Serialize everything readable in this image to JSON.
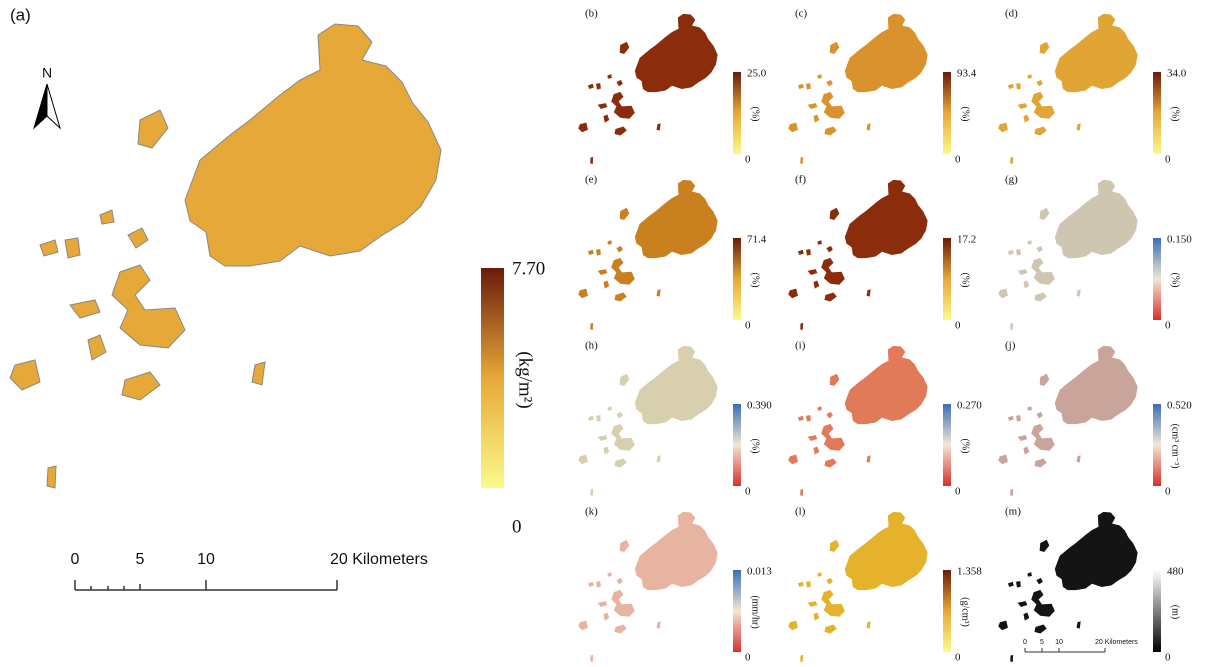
{
  "main": {
    "label": "(a)",
    "north": "N",
    "map_color": "#e6a838",
    "legend": {
      "max": "7.70",
      "min": "0",
      "unit": "(kg/m²)",
      "colors": [
        "#fafa8c",
        "#e8a838",
        "#6b1a0a"
      ]
    },
    "scale_bar": [
      "0",
      "5",
      "10",
      "20 Kilometers"
    ]
  },
  "panels": [
    {
      "label": "(b)",
      "max": "25.0",
      "min": "0",
      "unit": "(%)",
      "colors": [
        "#fafa8c",
        "#e8a838",
        "#6b1a0a"
      ],
      "map_color": "#8b2c0c"
    },
    {
      "label": "(c)",
      "max": "93.4",
      "min": "0",
      "unit": "(%)",
      "colors": [
        "#fafa8c",
        "#e8a838",
        "#6b1a0a"
      ],
      "map_color": "#d9922e"
    },
    {
      "label": "(d)",
      "max": "34.0",
      "min": "0",
      "unit": "(%)",
      "colors": [
        "#fafa8c",
        "#e8a838",
        "#6b1a0a"
      ],
      "map_color": "#e0a534"
    },
    {
      "label": "(e)",
      "max": "71.4",
      "min": "0",
      "unit": "(%)",
      "colors": [
        "#fafa8c",
        "#e8a838",
        "#6b1a0a"
      ],
      "map_color": "#c9801f"
    },
    {
      "label": "(f)",
      "max": "17.2",
      "min": "0",
      "unit": "(%)",
      "colors": [
        "#fafa8c",
        "#e8a838",
        "#6b1a0a"
      ],
      "map_color": "#8b2c0c"
    },
    {
      "label": "(g)",
      "max": "0.150",
      "min": "0",
      "unit": "(%)",
      "colors": [
        "#d7302a",
        "#f2e6d4",
        "#3a6fb5"
      ],
      "map_color": "#cfc6b2"
    },
    {
      "label": "(h)",
      "max": "0.390",
      "min": "0",
      "unit": "(%)",
      "colors": [
        "#d7302a",
        "#f2e6d4",
        "#3a6fb5"
      ],
      "map_color": "#d8cfae"
    },
    {
      "label": "(i)",
      "max": "0.270",
      "min": "0",
      "unit": "(%)",
      "colors": [
        "#d7302a",
        "#f2e6d4",
        "#3a6fb5"
      ],
      "map_color": "#e07a58"
    },
    {
      "label": "(j)",
      "max": "0.520",
      "min": "0",
      "unit": "(cm³ cm⁻³)",
      "colors": [
        "#d7302a",
        "#f2e6d4",
        "#3a6fb5"
      ],
      "map_color": "#c9a49a"
    },
    {
      "label": "(k)",
      "max": "0.013",
      "min": "0",
      "unit": "(mm/hr)",
      "colors": [
        "#d7302a",
        "#f2e6d4",
        "#3a6fb5"
      ],
      "map_color": "#e8b4a2"
    },
    {
      "label": "(l)",
      "max": "1.358",
      "min": "0",
      "unit": "(g/cm³)",
      "colors": [
        "#fafa8c",
        "#e8a838",
        "#6b1a0a"
      ],
      "map_color": "#e6b22c"
    },
    {
      "label": "(m)",
      "max": "480",
      "min": "0",
      "unit": "(m)",
      "colors": [
        "#000000",
        "#ffffff"
      ],
      "map_color": "#141414",
      "scale_bar": [
        "0",
        "5",
        "10",
        "20 Kilometers"
      ]
    }
  ]
}
